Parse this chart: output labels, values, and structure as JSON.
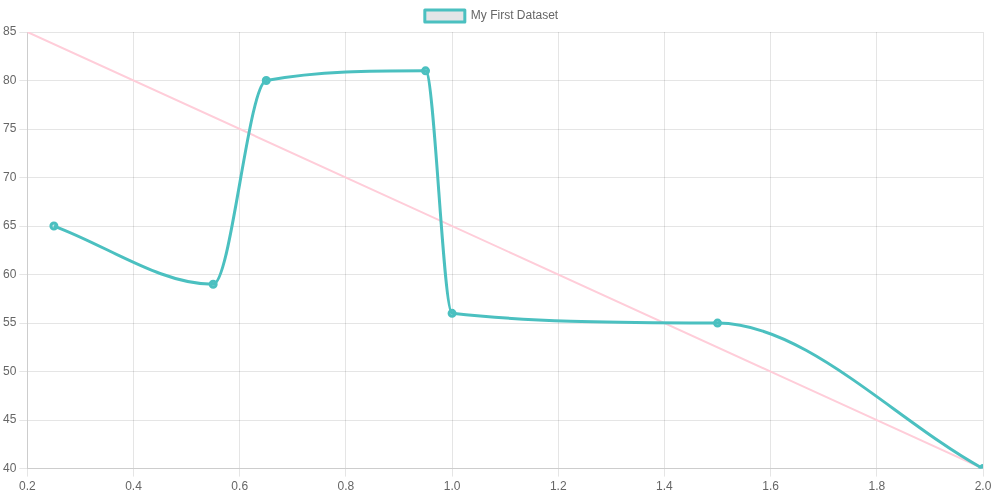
{
  "chart_data": {
    "type": "line",
    "legend": "top",
    "grid": true,
    "marker": "circle",
    "xlim": [
      0.2,
      2.0
    ],
    "xticks": [
      {
        "value": 0.2,
        "label": "0.2"
      },
      {
        "value": 0.4,
        "label": "0.4"
      },
      {
        "value": 0.6,
        "label": "0.6"
      },
      {
        "value": 0.8,
        "label": "0.8"
      },
      {
        "value": 1.0,
        "label": "1.0"
      },
      {
        "value": 1.2,
        "label": "1.2"
      },
      {
        "value": 1.4,
        "label": "1.4"
      },
      {
        "value": 1.6,
        "label": "1.6"
      },
      {
        "value": 1.8,
        "label": "1.8"
      },
      {
        "value": 2.0,
        "label": "2.0"
      }
    ],
    "ylim": [
      40,
      85
    ],
    "yticks": [
      40,
      45,
      50,
      55,
      60,
      65,
      70,
      75,
      80,
      85
    ],
    "series": [
      {
        "name": "My First Dataset",
        "color": "#4bc0c0",
        "x": [
          0.25,
          0.55,
          0.65,
          0.95,
          1.0,
          1.5,
          2.0
        ],
        "values": [
          65,
          59,
          80,
          81,
          56,
          55,
          40
        ]
      },
      {
        "type": "line",
        "color": "#ffcdd9",
        "marker": "none",
        "x": [
          0.2,
          2.0
        ],
        "values": [
          85,
          40
        ]
      }
    ]
  }
}
